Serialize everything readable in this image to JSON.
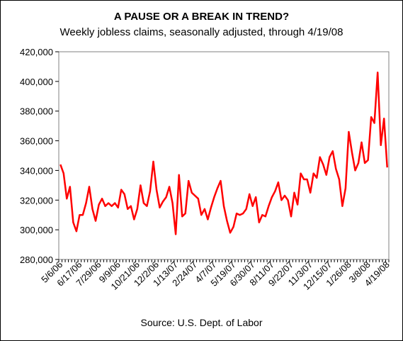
{
  "chart_data": {
    "type": "line",
    "title": "A PAUSE OR A BREAK IN TREND?",
    "subtitle": "Weekly jobless claims, seasonally adjusted, through 4/19/08",
    "source": "Source: U.S. Dept. of Labor",
    "xlabel": "",
    "ylabel": "",
    "ylim": [
      280000,
      420000
    ],
    "yticks": [
      280000,
      300000,
      320000,
      340000,
      360000,
      380000,
      400000,
      420000
    ],
    "ytick_labels": [
      "280,000",
      "300,000",
      "320,000",
      "340,000",
      "360,000",
      "380,000",
      "400,000",
      "420,000"
    ],
    "xtick_labels": [
      "5/6/06",
      "6/17/06",
      "7/29/06",
      "9/9/06",
      "10/21/06",
      "12/2/06",
      "1/13/07",
      "2/24/07",
      "4/7/07",
      "5/19/07",
      "6/30/07",
      "8/11/07",
      "9/22/07",
      "11/3/07",
      "12/15/07",
      "1/26/08",
      "3/8/08",
      "4/19/08"
    ],
    "xtick_every": 6,
    "grid": false,
    "legend": "none",
    "colors": {
      "line": "#ff0000",
      "plot_bg": "#ffffff",
      "axis": "#808080"
    },
    "series": [
      {
        "values": [
          344000,
          338000,
          321000,
          329000,
          305000,
          299000,
          310000,
          310000,
          318000,
          329000,
          314000,
          306000,
          317000,
          321000,
          316000,
          318000,
          316000,
          318000,
          315000,
          327000,
          324000,
          314000,
          316000,
          307000,
          314000,
          330000,
          318000,
          316000,
          326000,
          346000,
          327000,
          315000,
          319000,
          322000,
          329000,
          318000,
          297000,
          337000,
          309000,
          311000,
          333000,
          325000,
          323000,
          321000,
          310000,
          314000,
          307000,
          315000,
          322000,
          328000,
          333000,
          316000,
          306000,
          298000,
          302000,
          311000,
          310000,
          311000,
          314000,
          324000,
          316000,
          322000,
          305000,
          310000,
          309000,
          316000,
          322000,
          326000,
          332000,
          320000,
          323000,
          320000,
          309000,
          325000,
          317000,
          338000,
          334000,
          334000,
          325000,
          338000,
          335000,
          349000,
          344000,
          337000,
          349000,
          353000,
          341000,
          334000,
          316000,
          328000,
          366000,
          352000,
          340000,
          345000,
          359000,
          345000,
          347000,
          376000,
          372000,
          406000,
          357000,
          375000,
          342000
        ]
      }
    ]
  }
}
